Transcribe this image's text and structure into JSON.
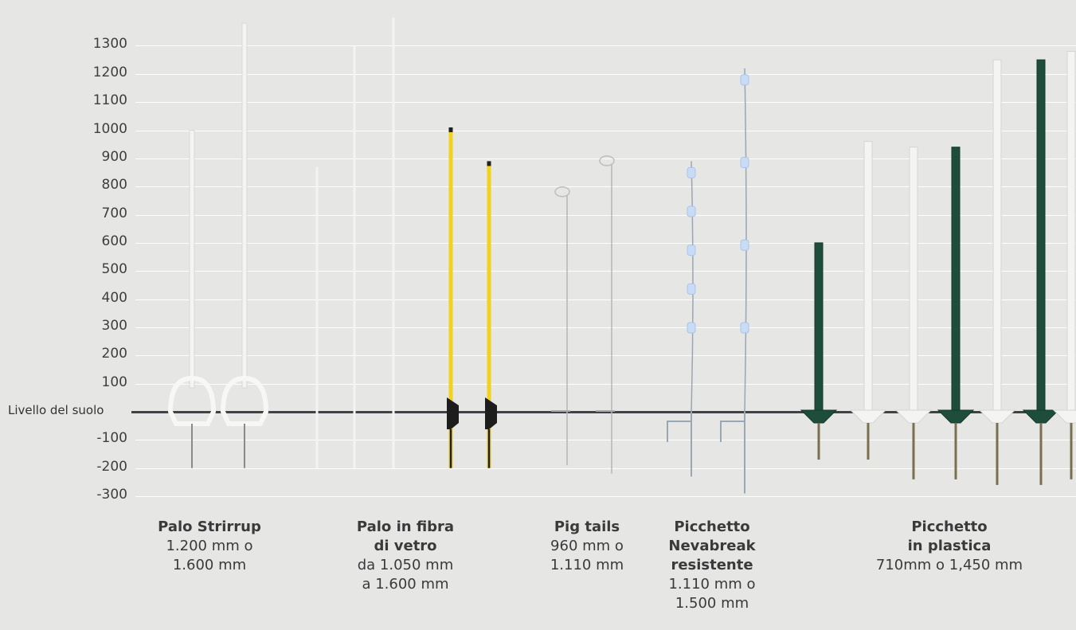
{
  "axis": {
    "ticks": [
      "1300",
      "1200",
      "1100",
      "1000",
      "900",
      "800",
      "700",
      "600",
      "500",
      "400",
      "300",
      "200",
      "100",
      "-100",
      "-200",
      "-300"
    ],
    "tick_values": [
      1300,
      1200,
      1100,
      1000,
      900,
      800,
      700,
      600,
      500,
      400,
      300,
      200,
      100,
      -100,
      -200,
      -300
    ],
    "ground_label": "Livello del suolo",
    "ground_value": 0
  },
  "colors": {
    "background": "#e6e6e5",
    "grid": "#ffffff",
    "ground": "#3f4347",
    "white_post": "#f4f4f2",
    "yellow_post": "#f2d21a",
    "green_post": "#1e4d3b",
    "wire": "#9aa6b2",
    "insulator_blue": "#c9dcf5"
  },
  "categories": [
    {
      "title_lines": [
        "Palo Strirrup"
      ],
      "spec_lines": [
        "1.200 mm o",
        "1.600 mm"
      ]
    },
    {
      "title_lines": [
        "Palo in fibra",
        "di vetro"
      ],
      "spec_lines": [
        "da 1.050 mm",
        "a 1.600 mm"
      ]
    },
    {
      "title_lines": [
        "Pig tails"
      ],
      "spec_lines": [
        "960 mm o",
        "1.110 mm"
      ]
    },
    {
      "title_lines": [
        "Picchetto",
        "Nevabreak",
        "resistente"
      ],
      "spec_lines": [
        "1.110 mm o",
        "1.500 mm"
      ]
    },
    {
      "title_lines": [
        "Picchetto",
        "in plastica"
      ],
      "spec_lines": [
        "710mm o 1,450 mm"
      ]
    }
  ],
  "posts": [
    {
      "kind": "stirrup",
      "category": 0,
      "top": 1000,
      "bottom": -200
    },
    {
      "kind": "stirrup",
      "category": 0,
      "top": 1380,
      "bottom": -200
    },
    {
      "kind": "rod",
      "category": 1,
      "top": 870,
      "bottom": -200,
      "color": "white"
    },
    {
      "kind": "rod",
      "category": 1,
      "top": 1300,
      "bottom": -200,
      "color": "white"
    },
    {
      "kind": "rod",
      "category": 1,
      "top": 1400,
      "bottom": -200,
      "color": "white"
    },
    {
      "kind": "yellow",
      "category": 1,
      "top": 1010,
      "bottom": -200
    },
    {
      "kind": "yellow",
      "category": 1,
      "top": 890,
      "bottom": -200
    },
    {
      "kind": "pigtail",
      "category": 2,
      "top": 770,
      "bottom": -190
    },
    {
      "kind": "pigtail",
      "category": 2,
      "top": 880,
      "bottom": -220
    },
    {
      "kind": "nevabreak",
      "category": 3,
      "top": 890,
      "bottom": -230
    },
    {
      "kind": "nevabreak",
      "category": 3,
      "top": 1220,
      "bottom": -290
    },
    {
      "kind": "plastic",
      "category": 4,
      "top": 600,
      "bottom": -170,
      "color": "green"
    },
    {
      "kind": "plastic",
      "category": 4,
      "top": 960,
      "bottom": -170,
      "color": "white"
    },
    {
      "kind": "plastic",
      "category": 4,
      "top": 940,
      "bottom": -240,
      "color": "white"
    },
    {
      "kind": "plastic",
      "category": 4,
      "top": 940,
      "bottom": -240,
      "color": "green"
    },
    {
      "kind": "plastic",
      "category": 4,
      "top": 1250,
      "bottom": -260,
      "color": "white"
    },
    {
      "kind": "plastic",
      "category": 4,
      "top": 1250,
      "bottom": -260,
      "color": "green"
    },
    {
      "kind": "plastic",
      "category": 4,
      "top": 1280,
      "bottom": -240,
      "color": "white"
    }
  ]
}
